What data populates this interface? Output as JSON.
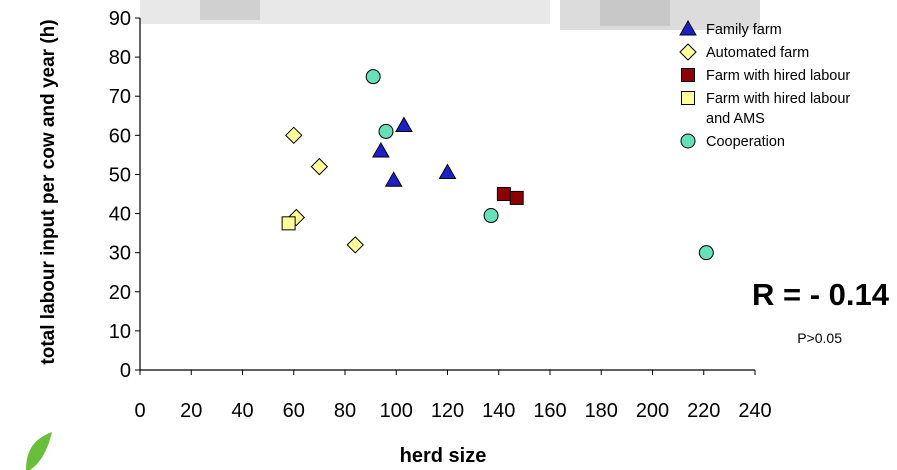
{
  "chart_data": {
    "type": "scatter",
    "xlabel": "herd size",
    "ylabel": "total labour input per cow and year (h)",
    "xlim": [
      0,
      240
    ],
    "ylim": [
      0,
      90
    ],
    "xticks": [
      "0",
      "20",
      "40",
      "60",
      "80",
      "100",
      "120",
      "140",
      "160",
      "180",
      "200",
      "220",
      "240"
    ],
    "yticks": [
      "0",
      "10",
      "20",
      "30",
      "40",
      "50",
      "60",
      "70",
      "80",
      "90"
    ],
    "grid": false,
    "legend_position": "top-right",
    "series": [
      {
        "name": "Family farm",
        "marker": "triangle",
        "color": "#1f1fc8",
        "points": [
          [
            94,
            56
          ],
          [
            99,
            48.5
          ],
          [
            103,
            62.5
          ],
          [
            120,
            50.5
          ]
        ]
      },
      {
        "name": "Automated  farm",
        "marker": "diamond",
        "color": "#ffff99",
        "points": [
          [
            60,
            60
          ],
          [
            70,
            52
          ],
          [
            61,
            39
          ],
          [
            84,
            32
          ]
        ]
      },
      {
        "name": "Farm with hired labour",
        "marker": "square",
        "color": "#8b0000",
        "points": [
          [
            142,
            45
          ],
          [
            147,
            44
          ]
        ]
      },
      {
        "name": "Farm with hired labour and AMS",
        "marker": "square",
        "color": "#ffff99",
        "points": [
          [
            58,
            37.5
          ]
        ]
      },
      {
        "name": "Cooperation",
        "marker": "circle",
        "color": "#66e0b8",
        "points": [
          [
            91,
            75
          ],
          [
            96,
            61
          ],
          [
            137,
            39.5
          ],
          [
            221,
            30
          ]
        ]
      }
    ],
    "annotations": [
      {
        "text": "R = - 0.14",
        "role": "correlation"
      },
      {
        "text": "P>0.05",
        "role": "significance"
      }
    ]
  }
}
